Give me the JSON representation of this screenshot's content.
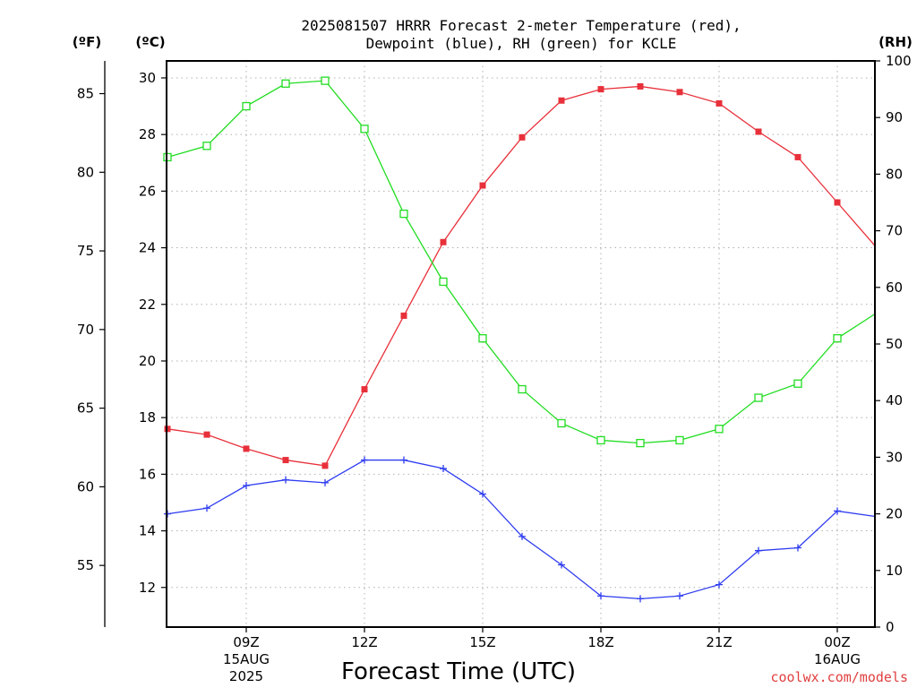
{
  "chart_data": {
    "type": "line",
    "title_line1": "2025081507 HRRR Forecast 2-meter Temperature (red),",
    "title_line2": "Dewpoint (blue), RH (green) for KCLE",
    "xlabel": "Forecast Time (UTC)",
    "credit": "coolwx.com/models",
    "units": {
      "fahrenheit": "(ºF)",
      "celsius": "(ºC)",
      "rh": "(RH)"
    },
    "x_hours_utc": [
      "2025-08-15 07Z",
      "2025-08-15 08Z",
      "2025-08-15 09Z",
      "2025-08-15 10Z",
      "2025-08-15 11Z",
      "2025-08-15 12Z",
      "2025-08-15 13Z",
      "2025-08-15 14Z",
      "2025-08-15 15Z",
      "2025-08-15 16Z",
      "2025-08-15 17Z",
      "2025-08-15 18Z",
      "2025-08-15 19Z",
      "2025-08-15 20Z",
      "2025-08-15 21Z",
      "2025-08-15 22Z",
      "2025-08-15 23Z",
      "2025-08-16 00Z",
      "2025-08-16 01Z"
    ],
    "x_ticks": [
      {
        "hour": "2025-08-15 09Z",
        "lines": [
          "09Z",
          "15AUG",
          "2025"
        ]
      },
      {
        "hour": "2025-08-15 12Z",
        "lines": [
          "12Z"
        ]
      },
      {
        "hour": "2025-08-15 15Z",
        "lines": [
          "15Z"
        ]
      },
      {
        "hour": "2025-08-15 18Z",
        "lines": [
          "18Z"
        ]
      },
      {
        "hour": "2025-08-15 21Z",
        "lines": [
          "21Z"
        ]
      },
      {
        "hour": "2025-08-16 00Z",
        "lines": [
          "00Z",
          "16AUG"
        ]
      }
    ],
    "y_celsius_range": [
      10.6,
      30.6
    ],
    "y_celsius_ticks": [
      "12",
      "14",
      "16",
      "18",
      "20",
      "22",
      "24",
      "26",
      "28",
      "30"
    ],
    "y_fahrenheit_ticks": [
      "55",
      "60",
      "65",
      "70",
      "75",
      "80",
      "85"
    ],
    "y_rh_range": [
      0,
      100
    ],
    "y_rh_ticks": [
      "0",
      "10",
      "20",
      "30",
      "40",
      "50",
      "60",
      "70",
      "80",
      "90",
      "100"
    ],
    "grid": true,
    "series": [
      {
        "name": "Temperature",
        "axis": "celsius",
        "color": "#e8303a",
        "marker": "filled-square",
        "values": [
          17.6,
          17.4,
          16.9,
          16.5,
          16.3,
          19.0,
          21.6,
          24.2,
          26.2,
          27.9,
          29.2,
          29.6,
          29.7,
          29.5,
          29.1,
          28.1,
          27.2,
          25.6,
          24.0
        ]
      },
      {
        "name": "Dewpoint",
        "axis": "celsius",
        "color": "#2e3cf0",
        "marker": "plus",
        "values": [
          14.6,
          14.8,
          15.6,
          15.8,
          15.7,
          16.5,
          16.5,
          16.2,
          15.3,
          13.8,
          12.8,
          11.7,
          11.6,
          11.7,
          12.1,
          13.3,
          13.4,
          14.7,
          14.5
        ]
      },
      {
        "name": "RH",
        "axis": "rh",
        "color": "#22dd22",
        "marker": "open-square",
        "values": [
          83,
          85,
          92,
          96,
          96.5,
          88,
          73,
          61,
          51,
          42,
          36,
          33,
          32.5,
          33,
          35,
          40.5,
          43,
          51,
          55.5
        ]
      }
    ]
  }
}
